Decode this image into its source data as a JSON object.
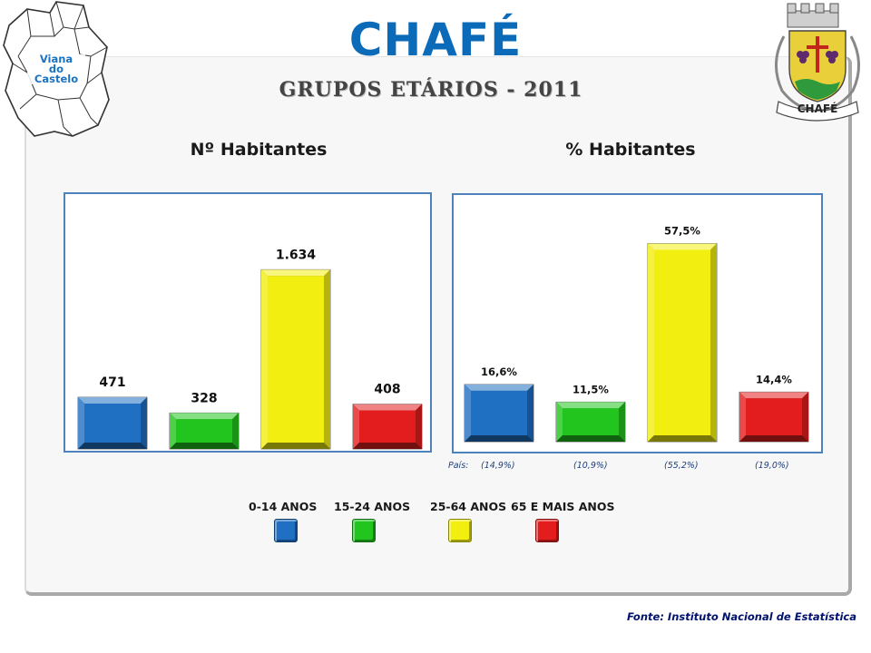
{
  "header": {
    "title": "CHAFÉ",
    "subtitle": "GRUPOS ETÁRIOS - 2011"
  },
  "map": {
    "label_line1": "Viana",
    "label_line2": "do",
    "label_line3": "Castelo"
  },
  "crest": {
    "label": "CHAFÉ"
  },
  "colors": {
    "title_blue": "#0b6bb8",
    "chart_border": "#4f81bd",
    "age_0_14": "#1f6fc2",
    "age_15_24": "#22c41e",
    "age_25_64": "#f2ee10",
    "age_65_plus": "#e31d1d"
  },
  "chart_data": [
    {
      "type": "bar",
      "title": "Nº Habitantes",
      "categories": [
        "0-14 ANOS",
        "15-24 ANOS",
        "25-64 ANOS",
        "65 E MAIS ANOS"
      ],
      "values": [
        471,
        328,
        1634,
        408
      ],
      "value_labels": [
        "471",
        "328",
        "1.634",
        "408"
      ],
      "ylim": [
        0,
        2000
      ],
      "grid": false
    },
    {
      "type": "bar",
      "title": "% Habitantes",
      "categories": [
        "0-14 ANOS",
        "15-24 ANOS",
        "25-64 ANOS",
        "65 E MAIS ANOS"
      ],
      "values": [
        16.6,
        11.5,
        57.5,
        14.4
      ],
      "value_labels": [
        "16,6%",
        "11,5%",
        "57,5%",
        "14,4%"
      ],
      "comparison_label": "País:",
      "comparison_values": [
        14.9,
        10.9,
        55.2,
        19.0
      ],
      "comparison_labels": [
        "(14,9%)",
        "(10,9%)",
        "(55,2%)",
        "(19,0%)"
      ],
      "ylim": [
        0,
        70
      ],
      "grid": false
    }
  ],
  "legend": {
    "items": [
      {
        "label": "0-14 ANOS",
        "color_key": "age_0_14"
      },
      {
        "label": "15-24 ANOS",
        "color_key": "age_15_24"
      },
      {
        "label": "25-64 ANOS",
        "color_key": "age_25_64"
      },
      {
        "label": "65 E MAIS ANOS",
        "color_key": "age_65_plus"
      }
    ]
  },
  "footer": {
    "source": "Fonte: Instituto Nacional de Estatística"
  }
}
